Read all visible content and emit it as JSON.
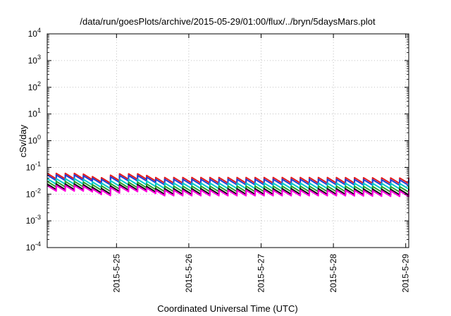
{
  "chart_data": {
    "type": "line",
    "title": "/data/run/goesPlots/archive/2015-05-29/01:00/flux/../bryn/5daysMars.plot",
    "xlabel": "Coordinated Universal Time (UTC)",
    "ylabel": "cSv/day",
    "yscale": "log",
    "ylim": [
      0.0001,
      10000
    ],
    "xlim": [
      "2015-05-24 01:00",
      "2015-05-29 01:00"
    ],
    "grid": true,
    "legend": "none",
    "yticks": [
      {
        "base": "10",
        "exp": "-4",
        "value": 0.0001
      },
      {
        "base": "10",
        "exp": "-3",
        "value": 0.001
      },
      {
        "base": "10",
        "exp": "-2",
        "value": 0.01
      },
      {
        "base": "10",
        "exp": "-1",
        "value": 0.1
      },
      {
        "base": "10",
        "exp": "0",
        "value": 1
      },
      {
        "base": "10",
        "exp": "1",
        "value": 10
      },
      {
        "base": "10",
        "exp": "2",
        "value": 100
      },
      {
        "base": "10",
        "exp": "3",
        "value": 1000
      },
      {
        "base": "10",
        "exp": "4",
        "value": 10000
      }
    ],
    "xticks": [
      {
        "label": "2015-5-25",
        "value": "2015-05-25 00:00"
      },
      {
        "label": "2015-5-26",
        "value": "2015-05-26 00:00"
      },
      {
        "label": "2015-5-27",
        "value": "2015-05-27 00:00"
      },
      {
        "label": "2015-5-28",
        "value": "2015-05-28 00:00"
      },
      {
        "label": "2015-5-29",
        "value": "2015-05-29 00:00"
      }
    ],
    "sawtooth_period_hours": 3,
    "series": [
      {
        "color": "#e41a1c",
        "envelope": [
          {
            "x": "2015-05-24 01:00",
            "y": 0.06
          },
          {
            "x": "2015-05-24 12:00",
            "y": 0.06
          },
          {
            "x": "2015-05-24 18:00",
            "y": 0.038
          },
          {
            "x": "2015-05-25 00:00",
            "y": 0.058
          },
          {
            "x": "2015-05-25 08:00",
            "y": 0.058
          },
          {
            "x": "2015-05-25 12:00",
            "y": 0.042
          },
          {
            "x": "2015-05-26 00:00",
            "y": 0.042
          },
          {
            "x": "2015-05-27 00:00",
            "y": 0.042
          },
          {
            "x": "2015-05-28 00:00",
            "y": 0.042
          },
          {
            "x": "2015-05-29 01:00",
            "y": 0.04
          }
        ]
      },
      {
        "color": "#1f3fd6",
        "envelope": [
          {
            "x": "2015-05-24 01:00",
            "y": 0.052
          },
          {
            "x": "2015-05-24 12:00",
            "y": 0.052
          },
          {
            "x": "2015-05-24 18:00",
            "y": 0.033
          },
          {
            "x": "2015-05-25 00:00",
            "y": 0.05
          },
          {
            "x": "2015-05-25 08:00",
            "y": 0.05
          },
          {
            "x": "2015-05-25 12:00",
            "y": 0.036
          },
          {
            "x": "2015-05-26 00:00",
            "y": 0.036
          },
          {
            "x": "2015-05-27 00:00",
            "y": 0.036
          },
          {
            "x": "2015-05-28 00:00",
            "y": 0.036
          },
          {
            "x": "2015-05-29 01:00",
            "y": 0.034
          }
        ]
      },
      {
        "color": "#00c8c8",
        "envelope": [
          {
            "x": "2015-05-24 01:00",
            "y": 0.038
          },
          {
            "x": "2015-05-24 12:00",
            "y": 0.038
          },
          {
            "x": "2015-05-24 18:00",
            "y": 0.024
          },
          {
            "x": "2015-05-25 00:00",
            "y": 0.036
          },
          {
            "x": "2015-05-25 08:00",
            "y": 0.036
          },
          {
            "x": "2015-05-25 12:00",
            "y": 0.026
          },
          {
            "x": "2015-05-26 00:00",
            "y": 0.026
          },
          {
            "x": "2015-05-27 00:00",
            "y": 0.026
          },
          {
            "x": "2015-05-28 00:00",
            "y": 0.026
          },
          {
            "x": "2015-05-29 01:00",
            "y": 0.025
          }
        ]
      },
      {
        "color": "#2ca02c",
        "envelope": [
          {
            "x": "2015-05-24 01:00",
            "y": 0.03
          },
          {
            "x": "2015-05-24 12:00",
            "y": 0.03
          },
          {
            "x": "2015-05-24 18:00",
            "y": 0.019
          },
          {
            "x": "2015-05-25 00:00",
            "y": 0.028
          },
          {
            "x": "2015-05-25 08:00",
            "y": 0.028
          },
          {
            "x": "2015-05-25 12:00",
            "y": 0.02
          },
          {
            "x": "2015-05-26 00:00",
            "y": 0.02
          },
          {
            "x": "2015-05-27 00:00",
            "y": 0.02
          },
          {
            "x": "2015-05-28 00:00",
            "y": 0.02
          },
          {
            "x": "2015-05-29 01:00",
            "y": 0.019
          }
        ]
      },
      {
        "color": "#111111",
        "envelope": [
          {
            "x": "2015-05-24 01:00",
            "y": 0.024
          },
          {
            "x": "2015-05-24 12:00",
            "y": 0.024
          },
          {
            "x": "2015-05-24 18:00",
            "y": 0.015
          },
          {
            "x": "2015-05-25 00:00",
            "y": 0.023
          },
          {
            "x": "2015-05-25 08:00",
            "y": 0.023
          },
          {
            "x": "2015-05-25 12:00",
            "y": 0.016
          },
          {
            "x": "2015-05-26 00:00",
            "y": 0.016
          },
          {
            "x": "2015-05-27 00:00",
            "y": 0.016
          },
          {
            "x": "2015-05-28 00:00",
            "y": 0.016
          },
          {
            "x": "2015-05-29 01:00",
            "y": 0.015
          }
        ]
      },
      {
        "color": "#ff00dd",
        "envelope": [
          {
            "x": "2015-05-24 01:00",
            "y": 0.021
          },
          {
            "x": "2015-05-24 12:00",
            "y": 0.021
          },
          {
            "x": "2015-05-24 18:00",
            "y": 0.013
          },
          {
            "x": "2015-05-25 00:00",
            "y": 0.02
          },
          {
            "x": "2015-05-25 08:00",
            "y": 0.02
          },
          {
            "x": "2015-05-25 12:00",
            "y": 0.014
          },
          {
            "x": "2015-05-26 00:00",
            "y": 0.014
          },
          {
            "x": "2015-05-27 00:00",
            "y": 0.014
          },
          {
            "x": "2015-05-28 00:00",
            "y": 0.014
          },
          {
            "x": "2015-05-29 01:00",
            "y": 0.013
          }
        ]
      }
    ]
  }
}
